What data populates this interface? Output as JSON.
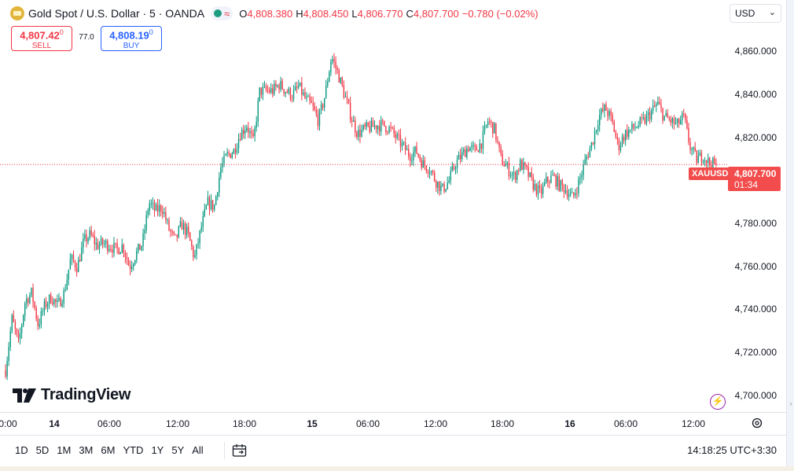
{
  "legend": {
    "title": "Gold Spot / U.S. Dollar · 5 · OANDA",
    "open_label": "O",
    "open": "4,808.380",
    "high_label": "H",
    "high": "4,808.450",
    "low_label": "L",
    "low": "4,806.770",
    "close_label": "C",
    "close": "4,807.700",
    "change": "−0.780 (−0.02%)",
    "wave_icon": "≈"
  },
  "trade": {
    "sell_price": "4,807.42",
    "sell_sup": "0",
    "sell_label": "SELL",
    "spread": "77.0",
    "buy_price": "4,808.19",
    "buy_sup": "0",
    "buy_label": "BUY"
  },
  "currency": {
    "value": "USD",
    "chevron": "⌄"
  },
  "last_price": {
    "symbol": "XAUUSD",
    "price": "4,807.700",
    "countdown": "01:34"
  },
  "brand": {
    "name": "TradingView"
  },
  "bottom": {
    "ranges": [
      "1D",
      "5D",
      "1M",
      "3M",
      "6M",
      "YTD",
      "1Y",
      "5Y",
      "All"
    ],
    "clock": "14:18:25 UTC+3:30"
  },
  "colors": {
    "up": "#089981",
    "down": "#f23645",
    "price_line": "#f23645",
    "text": "#131722"
  },
  "chart_data": {
    "type": "candlestick",
    "symbol": "XAUUSD",
    "interval": "5",
    "ylim": [
      4694,
      4874
    ],
    "y_ticks": [
      4860,
      4840,
      4820,
      4800,
      4780,
      4760,
      4740,
      4720,
      4700
    ],
    "y_tick_labels": [
      "4,860.000",
      "4,840.000",
      "4,820.000",
      "4,800.000",
      "4,780.000",
      "4,760.000",
      "4,740.000",
      "4,720.000",
      "4,700.000"
    ],
    "x_ticks": [
      {
        "label": "0:00",
        "bold": false
      },
      {
        "label": "14",
        "bold": true
      },
      {
        "label": "06:00",
        "bold": false
      },
      {
        "label": "12:00",
        "bold": false
      },
      {
        "label": "18:00",
        "bold": false
      },
      {
        "label": "15",
        "bold": true
      },
      {
        "label": "06:00",
        "bold": false
      },
      {
        "label": "12:00",
        "bold": false
      },
      {
        "label": "18:00",
        "bold": false
      },
      {
        "label": "16",
        "bold": true
      },
      {
        "label": "06:00",
        "bold": false
      },
      {
        "label": "12:00",
        "bold": false
      }
    ],
    "last_price": 4807.7,
    "price_path": [
      [
        0,
        4712
      ],
      [
        2,
        4736
      ],
      [
        4,
        4724
      ],
      [
        6,
        4744
      ],
      [
        8,
        4748
      ],
      [
        10,
        4733
      ],
      [
        12,
        4742
      ],
      [
        14,
        4746
      ],
      [
        16,
        4742
      ],
      [
        18,
        4748
      ],
      [
        20,
        4764
      ],
      [
        22,
        4760
      ],
      [
        24,
        4772
      ],
      [
        26,
        4775
      ],
      [
        28,
        4770
      ],
      [
        30,
        4771
      ],
      [
        32,
        4770
      ],
      [
        34,
        4768
      ],
      [
        36,
        4770
      ],
      [
        38,
        4760
      ],
      [
        40,
        4766
      ],
      [
        42,
        4771
      ],
      [
        44,
        4790
      ],
      [
        46,
        4786
      ],
      [
        48,
        4788
      ],
      [
        50,
        4778
      ],
      [
        52,
        4772
      ],
      [
        54,
        4780
      ],
      [
        56,
        4775
      ],
      [
        58,
        4764
      ],
      [
        60,
        4778
      ],
      [
        62,
        4790
      ],
      [
        64,
        4788
      ],
      [
        66,
        4806
      ],
      [
        68,
        4812
      ],
      [
        70,
        4814
      ],
      [
        72,
        4822
      ],
      [
        74,
        4826
      ],
      [
        76,
        4818
      ],
      [
        78,
        4842
      ],
      [
        80,
        4842
      ],
      [
        82,
        4842
      ],
      [
        84,
        4845
      ],
      [
        86,
        4842
      ],
      [
        88,
        4840
      ],
      [
        90,
        4844
      ],
      [
        92,
        4838
      ],
      [
        94,
        4835
      ],
      [
        96,
        4828
      ],
      [
        98,
        4840
      ],
      [
        100,
        4858
      ],
      [
        102,
        4850
      ],
      [
        104,
        4840
      ],
      [
        106,
        4830
      ],
      [
        108,
        4822
      ],
      [
        110,
        4824
      ],
      [
        112,
        4825
      ],
      [
        114,
        4826
      ],
      [
        116,
        4826
      ],
      [
        118,
        4824
      ],
      [
        120,
        4820
      ],
      [
        122,
        4816
      ],
      [
        124,
        4812
      ],
      [
        126,
        4814
      ],
      [
        128,
        4808
      ],
      [
        130,
        4806
      ],
      [
        132,
        4800
      ],
      [
        134,
        4796
      ],
      [
        136,
        4800
      ],
      [
        138,
        4808
      ],
      [
        140,
        4812
      ],
      [
        142,
        4816
      ],
      [
        144,
        4814
      ],
      [
        146,
        4818
      ],
      [
        148,
        4828
      ],
      [
        150,
        4824
      ],
      [
        152,
        4810
      ],
      [
        154,
        4806
      ],
      [
        156,
        4802
      ],
      [
        158,
        4808
      ],
      [
        160,
        4804
      ],
      [
        162,
        4798
      ],
      [
        164,
        4794
      ],
      [
        166,
        4800
      ],
      [
        168,
        4802
      ],
      [
        170,
        4798
      ],
      [
        172,
        4796
      ],
      [
        174,
        4792
      ],
      [
        176,
        4800
      ],
      [
        178,
        4810
      ],
      [
        180,
        4818
      ],
      [
        182,
        4830
      ],
      [
        184,
        4834
      ],
      [
        186,
        4828
      ],
      [
        188,
        4816
      ],
      [
        190,
        4822
      ],
      [
        192,
        4824
      ],
      [
        194,
        4826
      ],
      [
        196,
        4828
      ],
      [
        198,
        4832
      ],
      [
        200,
        4836
      ],
      [
        202,
        4830
      ],
      [
        204,
        4828
      ],
      [
        206,
        4826
      ],
      [
        208,
        4830
      ],
      [
        210,
        4816
      ],
      [
        212,
        4810
      ],
      [
        214,
        4812
      ],
      [
        216,
        4808
      ],
      [
        218,
        4807.7
      ]
    ]
  }
}
